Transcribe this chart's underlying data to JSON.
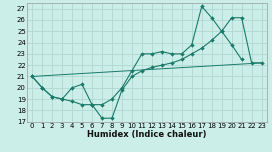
{
  "xlabel": "Humidex (Indice chaleur)",
  "bg_color": "#cceee8",
  "grid_color": "#b0d8d0",
  "line_color": "#1a7a6a",
  "xlim": [
    -0.5,
    23.5
  ],
  "ylim": [
    17,
    27.5
  ],
  "yticks": [
    17,
    18,
    19,
    20,
    21,
    22,
    23,
    24,
    25,
    26,
    27
  ],
  "xticks": [
    0,
    1,
    2,
    3,
    4,
    5,
    6,
    7,
    8,
    9,
    10,
    11,
    12,
    13,
    14,
    15,
    16,
    17,
    18,
    19,
    20,
    21,
    22,
    23
  ],
  "line1_x": [
    0,
    1,
    2,
    3,
    4,
    5,
    6,
    7,
    8,
    9,
    10,
    11,
    12,
    13,
    14,
    15,
    16,
    17,
    18,
    19,
    20,
    21,
    22,
    23
  ],
  "line1_y": [
    21,
    20,
    19.2,
    19,
    18.8,
    18.5,
    18.5,
    18.5,
    19.0,
    20.0,
    21.5,
    23.0,
    23.0,
    23.2,
    23.0,
    23.0,
    23.8,
    27.2,
    26.2,
    25.0,
    23.8,
    22.5,
    null,
    null
  ],
  "line2_x": [
    0,
    1,
    2,
    3,
    4,
    5,
    6,
    7,
    8,
    9,
    10,
    11,
    12,
    13,
    14,
    15,
    16,
    17,
    18,
    19,
    20,
    21,
    22,
    23
  ],
  "line2_y": [
    21,
    20,
    19.2,
    19,
    20.0,
    20.3,
    18.5,
    17.3,
    17.3,
    19.8,
    21.0,
    21.5,
    21.8,
    22.0,
    22.2,
    22.5,
    23.0,
    23.5,
    24.2,
    25.0,
    26.2,
    26.2,
    22.2,
    22.2
  ],
  "line3_x": [
    0,
    23
  ],
  "line3_y": [
    21,
    22.2
  ]
}
